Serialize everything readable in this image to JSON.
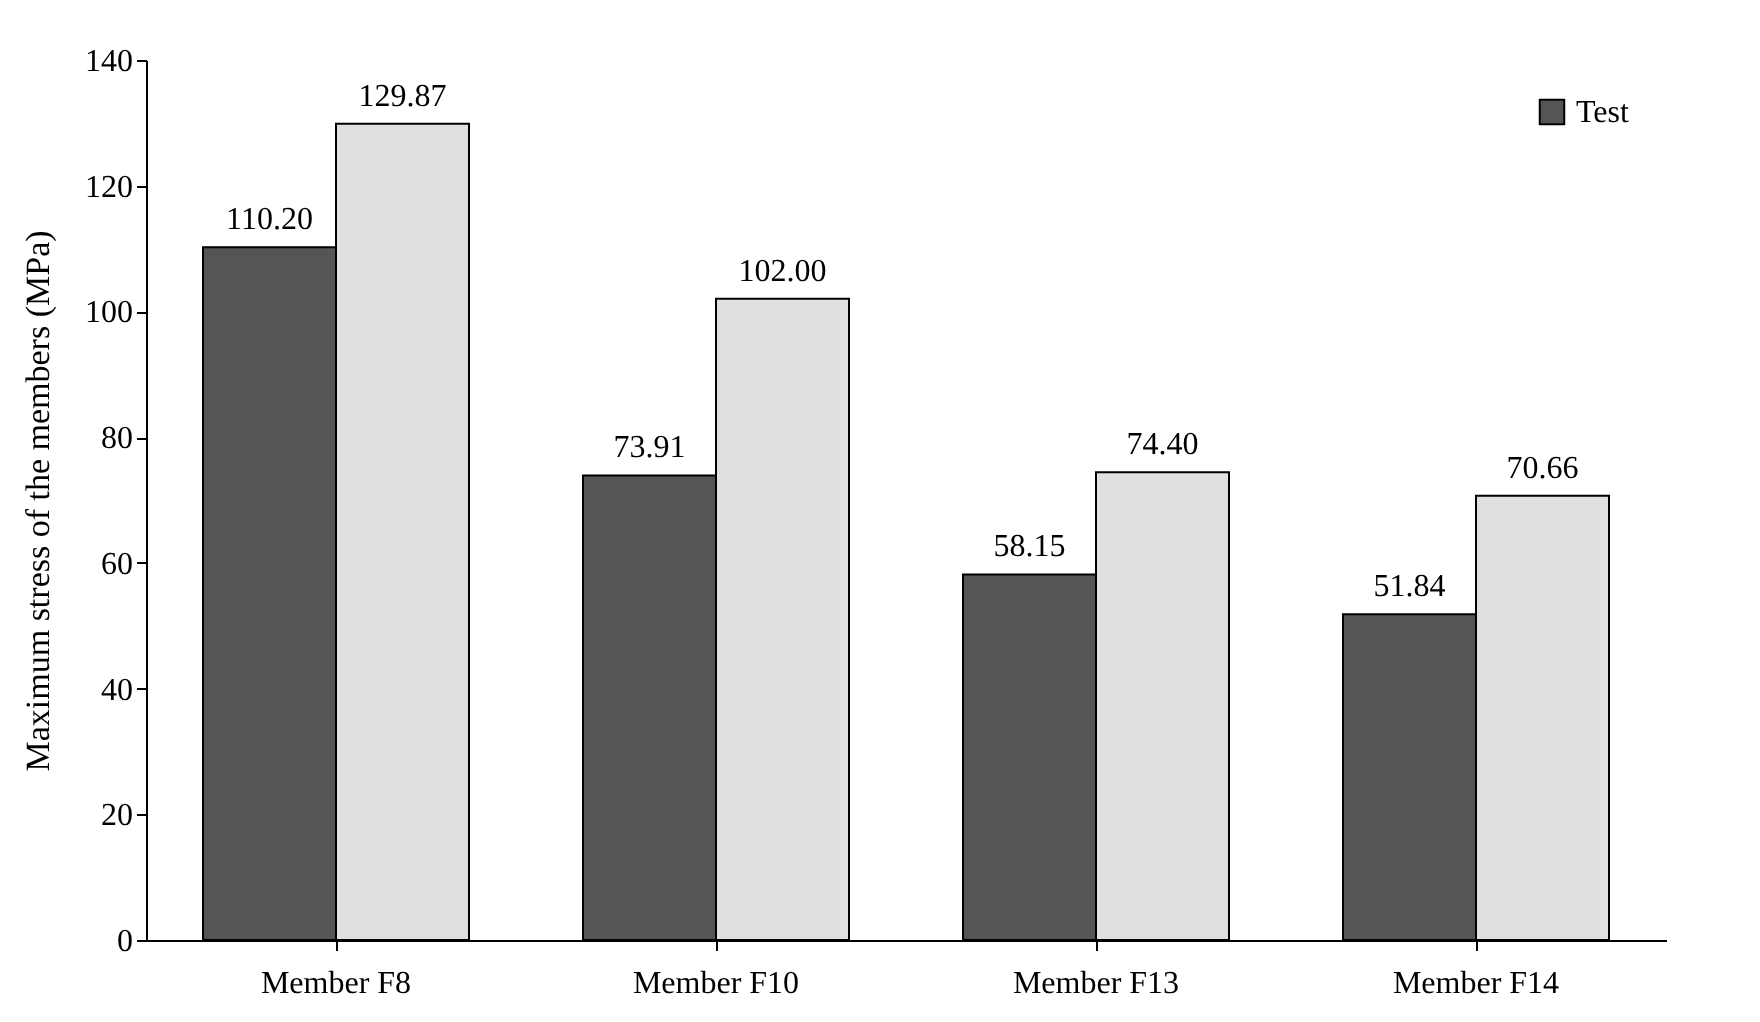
{
  "chart_data": {
    "type": "bar",
    "ylabel": "Maximum stress of the members (MPa)",
    "categories": [
      "Member F8",
      "Member F10",
      "Member F13",
      "Member F14"
    ],
    "series": [
      {
        "name": "Test",
        "color": "#555555",
        "values": [
          110.2,
          73.91,
          58.15,
          51.84
        ],
        "value_labels": [
          "110.20",
          "73.91",
          "58.15",
          "51.84"
        ]
      },
      {
        "color": "#e0e0e0",
        "values": [
          129.87,
          102.0,
          74.4,
          70.66
        ],
        "value_labels": [
          "129.87",
          "102.00",
          "74.40",
          "70.66"
        ]
      }
    ],
    "ylim": [
      0,
      140
    ],
    "yticks": [
      0,
      20,
      40,
      60,
      80,
      100,
      120,
      140
    ],
    "grid": false,
    "legend": "top right"
  }
}
